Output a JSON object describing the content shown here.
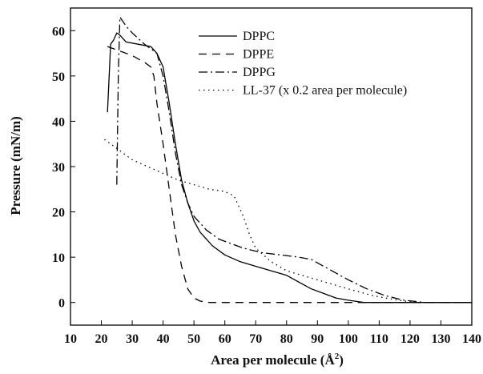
{
  "chart_data": {
    "type": "line",
    "xlabel": "Area per molecule (Å",
    "xlabel_sup": "2",
    "xlabel_close": ")",
    "ylabel": "Pressure (mN/m)",
    "xlim": [
      10,
      140
    ],
    "ylim": [
      -5,
      65
    ],
    "xticks": [
      10,
      20,
      30,
      40,
      50,
      60,
      70,
      80,
      90,
      100,
      110,
      120,
      130,
      140
    ],
    "yticks": [
      0,
      10,
      20,
      30,
      40,
      50,
      60
    ],
    "grid": false,
    "legend_position": "top-right",
    "series": [
      {
        "name": "DPPC",
        "style": "solid",
        "points": [
          [
            22,
            42
          ],
          [
            23,
            57
          ],
          [
            24,
            58
          ],
          [
            25,
            59.5
          ],
          [
            26,
            59
          ],
          [
            28,
            57.5
          ],
          [
            32,
            57
          ],
          [
            36,
            56.5
          ],
          [
            38,
            55
          ],
          [
            40,
            52
          ],
          [
            42,
            44
          ],
          [
            44,
            35
          ],
          [
            46,
            27
          ],
          [
            48,
            22
          ],
          [
            50,
            18
          ],
          [
            52,
            15.5
          ],
          [
            56,
            12.5
          ],
          [
            60,
            10.5
          ],
          [
            65,
            9
          ],
          [
            70,
            8
          ],
          [
            75,
            7
          ],
          [
            80,
            6
          ],
          [
            84,
            4.5
          ],
          [
            88,
            3
          ],
          [
            92,
            2
          ],
          [
            96,
            1
          ],
          [
            100,
            0.5
          ],
          [
            105,
            0
          ],
          [
            110,
            0
          ],
          [
            140,
            0
          ]
        ]
      },
      {
        "name": "DPPE",
        "style": "dashed",
        "points": [
          [
            22,
            56.5
          ],
          [
            26,
            55.5
          ],
          [
            30,
            54.5
          ],
          [
            34,
            53
          ],
          [
            36,
            52
          ],
          [
            37,
            50
          ],
          [
            38,
            44
          ],
          [
            40,
            35
          ],
          [
            42,
            25
          ],
          [
            44,
            15
          ],
          [
            46,
            8
          ],
          [
            48,
            3
          ],
          [
            50,
            1
          ],
          [
            52,
            0.3
          ],
          [
            55,
            0
          ],
          [
            60,
            0
          ],
          [
            140,
            0
          ]
        ]
      },
      {
        "name": "DPPG",
        "style": "dash-dot",
        "points": [
          [
            25,
            26
          ],
          [
            25.5,
            50
          ],
          [
            26,
            63
          ],
          [
            28,
            61
          ],
          [
            30,
            59.5
          ],
          [
            34,
            57
          ],
          [
            38,
            55
          ],
          [
            40,
            50
          ],
          [
            42,
            42
          ],
          [
            44,
            33
          ],
          [
            46,
            26
          ],
          [
            48,
            22
          ],
          [
            50,
            19
          ],
          [
            54,
            16
          ],
          [
            58,
            14
          ],
          [
            62,
            13
          ],
          [
            66,
            12
          ],
          [
            72,
            11
          ],
          [
            78,
            10.5
          ],
          [
            84,
            10
          ],
          [
            88,
            9.5
          ],
          [
            92,
            8
          ],
          [
            96,
            6.5
          ],
          [
            100,
            5
          ],
          [
            106,
            3
          ],
          [
            112,
            1.5
          ],
          [
            118,
            0.5
          ],
          [
            125,
            0
          ],
          [
            140,
            0
          ]
        ]
      },
      {
        "name": "LL-37 (x 0.2 area per molecule)",
        "style": "dotted",
        "points": [
          [
            21,
            36
          ],
          [
            24,
            34.5
          ],
          [
            27,
            33
          ],
          [
            30,
            31.5
          ],
          [
            35,
            30
          ],
          [
            40,
            28.5
          ],
          [
            45,
            27
          ],
          [
            50,
            26
          ],
          [
            55,
            25
          ],
          [
            60,
            24.5
          ],
          [
            63,
            23.5
          ],
          [
            66,
            19
          ],
          [
            68,
            15
          ],
          [
            70,
            12
          ],
          [
            75,
            9
          ],
          [
            80,
            7
          ],
          [
            85,
            6
          ],
          [
            90,
            5
          ],
          [
            95,
            4
          ],
          [
            100,
            3
          ],
          [
            108,
            1.5
          ],
          [
            116,
            0.5
          ],
          [
            122,
            0
          ],
          [
            140,
            0
          ]
        ]
      }
    ]
  }
}
